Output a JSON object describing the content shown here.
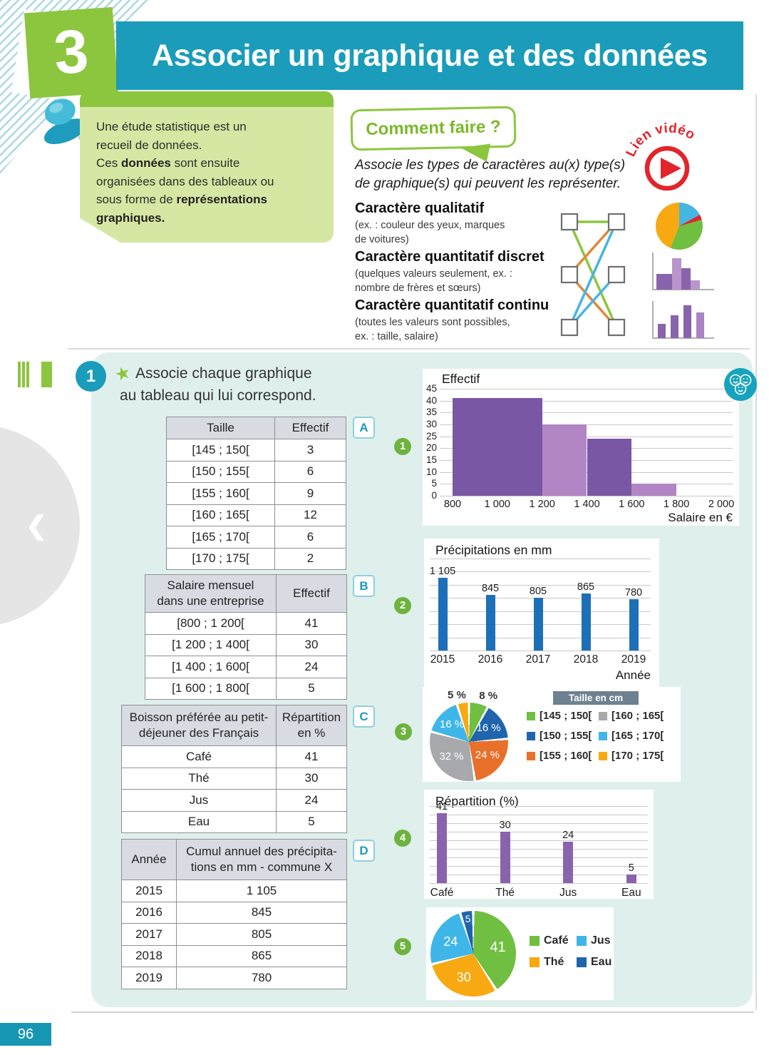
{
  "header": {
    "chapter_number": "3",
    "title": "Associer un graphique et des données"
  },
  "intro": {
    "seg1": "Une étude statistique est un\nrecueil de données.\nCes ",
    "seg2": "données",
    "seg3": " sont ensuite\norganisées dans des tableaux ou\nsous forme de ",
    "seg4": "représentations\ngraphiques."
  },
  "how_to": {
    "bubble_label": "Comment faire ?",
    "video_label": "Lien vidéo",
    "instruction_line1": "Associe les types de caractères au(x) type(s)",
    "instruction_line2": "de graphique(s) qui peuvent les représenter.",
    "categories": [
      {
        "title": "Caractère qualitatif",
        "note": "(ex. : couleur des yeux, marques\nde voitures)"
      },
      {
        "title": "Caractère quantitatif discret",
        "note": "(quelques valeurs seulement, ex. :\nnombre de frères et sœurs)"
      },
      {
        "title": "Caractère quantitatif continu",
        "note": "(toutes les valeurs sont possibles,\nex. : taille, salaire)"
      }
    ],
    "icons": [
      "pie-chart-icon",
      "histogram-icon",
      "bar-chart-icon"
    ]
  },
  "exercise": {
    "number": "1",
    "prompt_line1": "Associe chaque graphique",
    "prompt_line2": "au tableau qui lui correspond.",
    "tables": [
      {
        "label": "A",
        "headers": [
          "Taille",
          "Effectif"
        ],
        "rows": [
          [
            "[145 ; 150[",
            "3"
          ],
          [
            "[150 ; 155[",
            "6"
          ],
          [
            "[155 ; 160[",
            "9"
          ],
          [
            "[160 ; 165[",
            "12"
          ],
          [
            "[165 ; 170[",
            "6"
          ],
          [
            "[170 ; 175[",
            "2"
          ]
        ]
      },
      {
        "label": "B",
        "headers": [
          "Salaire mensuel\ndans une entreprise",
          "Effectif"
        ],
        "rows": [
          [
            "[800 ; 1 200[",
            "41"
          ],
          [
            "[1 200 ; 1 400[",
            "30"
          ],
          [
            "[1 400 ; 1 600[",
            "24"
          ],
          [
            "[1 600 ; 1 800[",
            "5"
          ]
        ]
      },
      {
        "label": "C",
        "headers": [
          "Boisson préférée au petit-\ndéjeuner des Français",
          "Répartition\nen %"
        ],
        "rows": [
          [
            "Café",
            "41"
          ],
          [
            "Thé",
            "30"
          ],
          [
            "Jus",
            "24"
          ],
          [
            "Eau",
            "5"
          ]
        ]
      },
      {
        "label": "D",
        "headers": [
          "Année",
          "Cumul annuel des précipita-\ntions en mm - commune X"
        ],
        "rows": [
          [
            "2015",
            "1 105"
          ],
          [
            "2016",
            "845"
          ],
          [
            "2017",
            "805"
          ],
          [
            "2018",
            "865"
          ],
          [
            "2019",
            "780"
          ]
        ]
      }
    ]
  },
  "chart_data": [
    {
      "id": "salary-histogram",
      "type": "histogram",
      "badge": "1",
      "title": "Effectif",
      "xlabel": "Salaire en €",
      "ylim": [
        0,
        45
      ],
      "yticks": [
        0,
        5,
        10,
        15,
        20,
        25,
        30,
        35,
        40,
        45
      ],
      "xticks": [
        800,
        1000,
        1200,
        1400,
        1600,
        1800,
        2000
      ],
      "xtick_labels": [
        "800",
        "1 000",
        "1 200",
        "1 400",
        "1 600",
        "1 800",
        "2 000"
      ],
      "bins": [
        {
          "from": 800,
          "to": 1200,
          "value": 41,
          "color": "#7a57a5"
        },
        {
          "from": 1200,
          "to": 1400,
          "value": 30,
          "color": "#b286c5"
        },
        {
          "from": 1400,
          "to": 1600,
          "value": 24,
          "color": "#7a57a5"
        },
        {
          "from": 1600,
          "to": 1800,
          "value": 5,
          "color": "#b286c5"
        }
      ],
      "grid": true,
      "legend_position": "none"
    },
    {
      "id": "precipitation-bars",
      "type": "bar",
      "badge": "2",
      "title": "Précipitations en mm",
      "xlabel": "Année",
      "categories": [
        "2015",
        "2016",
        "2017",
        "2018",
        "2019"
      ],
      "values": [
        1105,
        845,
        805,
        865,
        780
      ],
      "value_labels": [
        "1 105",
        "845",
        "805",
        "865",
        "780"
      ],
      "ylim": [
        0,
        1400
      ],
      "gridline_step": 200,
      "bar_color": "#1d70b7",
      "grid": true
    },
    {
      "id": "taille-pie",
      "type": "pie",
      "badge": "3",
      "legend_title": "Taille en cm",
      "slices": [
        {
          "label": "[145 ; 150[",
          "value": 8,
          "color": "#70bf41",
          "text": "8 %",
          "outside": true
        },
        {
          "label": "[150 ; 155[",
          "value": 16,
          "color": "#1f64ad",
          "text": "16 %"
        },
        {
          "label": "[155 ; 160[",
          "value": 24,
          "color": "#e8702a",
          "text": "24 %"
        },
        {
          "label": "[160 ; 165[",
          "value": 32,
          "color": "#a7a9ac",
          "text": "32 %"
        },
        {
          "label": "[165 ; 170[",
          "value": 16,
          "color": "#3fb6e8",
          "text": "16 %"
        },
        {
          "label": "[170 ; 175[",
          "value": 5,
          "color": "#f8a912",
          "text": "5 %",
          "outside": true
        }
      ],
      "legend_order": [
        0,
        3,
        1,
        4,
        2,
        5
      ],
      "legend_position": "right"
    },
    {
      "id": "boisson-bars",
      "type": "bar",
      "badge": "4",
      "title": "Répartition (%)",
      "xlabel": "",
      "categories": [
        "Café",
        "Thé",
        "Jus",
        "Eau"
      ],
      "values": [
        41,
        30,
        24,
        5
      ],
      "value_labels": [
        "41",
        "30",
        "24",
        "5"
      ],
      "ylim": [
        0,
        45
      ],
      "gridline_step": 5,
      "bar_color": "#8a63ad",
      "grid": true
    },
    {
      "id": "boisson-pie",
      "type": "pie",
      "badge": "5",
      "slices": [
        {
          "label": "Café",
          "value": 41,
          "color": "#70bf41",
          "text": "41"
        },
        {
          "label": "Thé",
          "value": 30,
          "color": "#f8a912",
          "text": "30"
        },
        {
          "label": "Jus",
          "value": 24,
          "color": "#3fb6e8",
          "text": "24"
        },
        {
          "label": "Eau",
          "value": 5,
          "color": "#1f64ad",
          "text": "5"
        }
      ],
      "legend_order": [
        0,
        2,
        1,
        3
      ],
      "legend_position": "right"
    }
  ],
  "footer": {
    "page_number": "96"
  }
}
